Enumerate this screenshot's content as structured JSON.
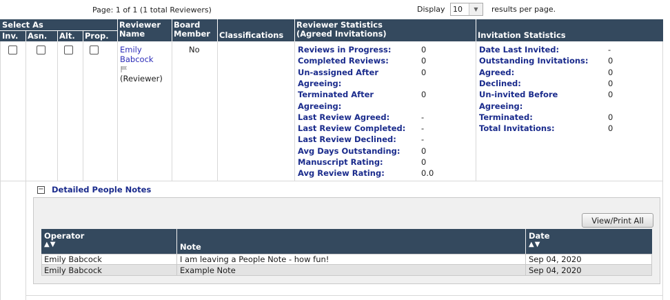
{
  "pagination": {
    "page_info": "Page: 1 of 1 (1 total Reviewers)",
    "display_label": "Display",
    "display_value": "10",
    "results_label": "results per page."
  },
  "headers": {
    "select_as": "Select As",
    "inv": "Inv.",
    "asn": "Asn.",
    "alt": "Alt.",
    "prop": "Prop.",
    "reviewer_line1": "Reviewer",
    "reviewer_line2": "Name",
    "board_line1": "Board",
    "board_line2": "Member",
    "classifications": "Classifications",
    "reviewer_stats_line1": "Reviewer Statistics",
    "reviewer_stats_line2": "(Agreed Invitations)",
    "invitation_stats": "Invitation Statistics"
  },
  "reviewer": {
    "first_name": "Emily",
    "last_name": "Babcock",
    "role": "(Reviewer)",
    "board_member": "No"
  },
  "reviewer_stats": [
    {
      "label": "Reviews in Progress:",
      "value": "0"
    },
    {
      "label": "Completed Reviews:",
      "value": "0"
    },
    {
      "label": "Un-assigned After",
      "value": "0"
    },
    {
      "label": "Agreeing:",
      "value": ""
    },
    {
      "label": "Terminated After",
      "value": "0"
    },
    {
      "label": "Agreeing:",
      "value": ""
    },
    {
      "label": "Last Review Agreed:",
      "value": "-"
    },
    {
      "label": "Last Review Completed:",
      "value": "-"
    },
    {
      "label": "Last Review Declined:",
      "value": "-"
    },
    {
      "label": "Avg Days Outstanding:",
      "value": "0"
    },
    {
      "label": "Manuscript Rating:",
      "value": "0"
    },
    {
      "label": "Avg Review Rating:",
      "value": "0.0"
    }
  ],
  "invitation_stats": [
    {
      "label": "Date Last Invited:",
      "value": "-"
    },
    {
      "label": "Outstanding Invitations:",
      "value": "0"
    },
    {
      "label": "Agreed:",
      "value": "0"
    },
    {
      "label": "Declined:",
      "value": "0"
    },
    {
      "label": "Un-invited Before",
      "value": "0"
    },
    {
      "label": "Agreeing:",
      "value": ""
    },
    {
      "label": "Terminated:",
      "value": "0"
    },
    {
      "label": "Total Invitations:",
      "value": "0"
    }
  ],
  "notes": {
    "toggle_symbol": "−",
    "title": "Detailed People Notes",
    "view_print_label": "View/Print All",
    "columns": {
      "operator": "Operator",
      "note": "Note",
      "date": "Date",
      "sort_arrows": "▲▼"
    },
    "rows": [
      {
        "operator": "Emily Babcock",
        "note": "I am leaving a People Note - how fun!",
        "date": "Sep 04, 2020"
      },
      {
        "operator": "Emily Babcock",
        "note": "Example Note",
        "date": "Sep 04, 2020"
      }
    ]
  },
  "colors": {
    "header_bg": "#34495e",
    "label_blue": "#1a2b8c",
    "link_blue": "#2b2bb8"
  }
}
